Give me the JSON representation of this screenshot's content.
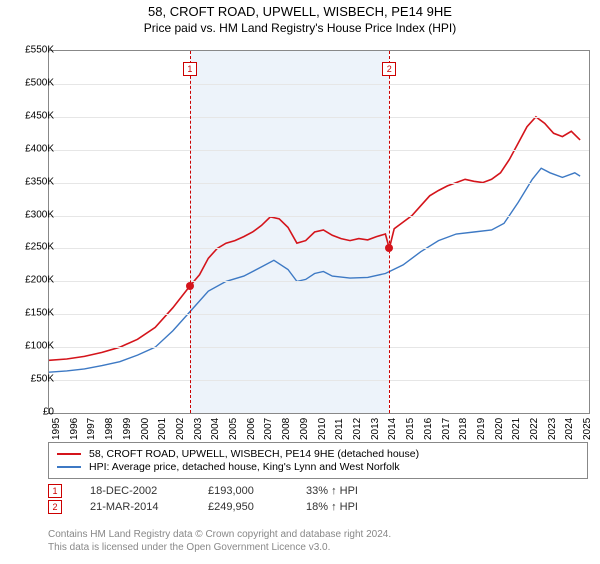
{
  "title": "58, CROFT ROAD, UPWELL, WISBECH, PE14 9HE",
  "subtitle": "Price paid vs. HM Land Registry's House Price Index (HPI)",
  "chart": {
    "type": "line",
    "background_color": "#ffffff",
    "grid_color": "#e6e6e6",
    "shaded_region_color": "#edf3fa",
    "x_start_year": 1995,
    "x_end_year": 2025.5,
    "x_ticks": [
      1995,
      1996,
      1997,
      1998,
      1999,
      2000,
      2001,
      2002,
      2003,
      2004,
      2005,
      2006,
      2007,
      2008,
      2009,
      2010,
      2011,
      2012,
      2013,
      2014,
      2015,
      2016,
      2017,
      2018,
      2019,
      2020,
      2021,
      2022,
      2023,
      2024,
      2025
    ],
    "y_min": 0,
    "y_max": 550000,
    "y_ticks": [
      0,
      50000,
      100000,
      150000,
      200000,
      250000,
      300000,
      350000,
      400000,
      450000,
      500000,
      550000
    ],
    "y_tick_labels": [
      "£0",
      "£50K",
      "£100K",
      "£150K",
      "£200K",
      "£250K",
      "£300K",
      "£350K",
      "£400K",
      "£450K",
      "£500K",
      "£550K"
    ],
    "shaded_start": 2002.96,
    "shaded_end": 2014.22,
    "series": [
      {
        "name": "property",
        "color": "#d4141b",
        "width": 1.6,
        "points": [
          [
            1995.0,
            80000
          ],
          [
            1996.0,
            82000
          ],
          [
            1997.0,
            86000
          ],
          [
            1998.0,
            92000
          ],
          [
            1999.0,
            100000
          ],
          [
            2000.0,
            112000
          ],
          [
            2001.0,
            130000
          ],
          [
            2002.0,
            160000
          ],
          [
            2002.96,
            193000
          ],
          [
            2003.5,
            210000
          ],
          [
            2004.0,
            235000
          ],
          [
            2004.5,
            250000
          ],
          [
            2005.0,
            258000
          ],
          [
            2005.5,
            262000
          ],
          [
            2006.0,
            268000
          ],
          [
            2006.5,
            275000
          ],
          [
            2007.0,
            285000
          ],
          [
            2007.5,
            298000
          ],
          [
            2008.0,
            295000
          ],
          [
            2008.5,
            282000
          ],
          [
            2009.0,
            258000
          ],
          [
            2009.5,
            262000
          ],
          [
            2010.0,
            275000
          ],
          [
            2010.5,
            278000
          ],
          [
            2011.0,
            270000
          ],
          [
            2011.5,
            265000
          ],
          [
            2012.0,
            262000
          ],
          [
            2012.5,
            265000
          ],
          [
            2013.0,
            263000
          ],
          [
            2013.5,
            268000
          ],
          [
            2014.0,
            272000
          ],
          [
            2014.22,
            249950
          ],
          [
            2014.5,
            280000
          ],
          [
            2015.0,
            290000
          ],
          [
            2015.5,
            300000
          ],
          [
            2016.0,
            315000
          ],
          [
            2016.5,
            330000
          ],
          [
            2017.0,
            338000
          ],
          [
            2017.5,
            345000
          ],
          [
            2018.0,
            350000
          ],
          [
            2018.5,
            355000
          ],
          [
            2019.0,
            352000
          ],
          [
            2019.5,
            350000
          ],
          [
            2020.0,
            355000
          ],
          [
            2020.5,
            365000
          ],
          [
            2021.0,
            385000
          ],
          [
            2021.5,
            410000
          ],
          [
            2022.0,
            435000
          ],
          [
            2022.5,
            450000
          ],
          [
            2023.0,
            440000
          ],
          [
            2023.5,
            425000
          ],
          [
            2024.0,
            420000
          ],
          [
            2024.5,
            428000
          ],
          [
            2025.0,
            415000
          ]
        ]
      },
      {
        "name": "hpi",
        "color": "#3d79c4",
        "width": 1.4,
        "points": [
          [
            1995.0,
            62000
          ],
          [
            1996.0,
            64000
          ],
          [
            1997.0,
            67000
          ],
          [
            1998.0,
            72000
          ],
          [
            1999.0,
            78000
          ],
          [
            2000.0,
            88000
          ],
          [
            2001.0,
            100000
          ],
          [
            2002.0,
            125000
          ],
          [
            2003.0,
            155000
          ],
          [
            2004.0,
            185000
          ],
          [
            2005.0,
            200000
          ],
          [
            2006.0,
            208000
          ],
          [
            2007.0,
            222000
          ],
          [
            2007.7,
            232000
          ],
          [
            2008.5,
            218000
          ],
          [
            2009.0,
            200000
          ],
          [
            2009.5,
            203000
          ],
          [
            2010.0,
            212000
          ],
          [
            2010.5,
            215000
          ],
          [
            2011.0,
            208000
          ],
          [
            2012.0,
            205000
          ],
          [
            2013.0,
            206000
          ],
          [
            2014.0,
            212000
          ],
          [
            2015.0,
            225000
          ],
          [
            2016.0,
            245000
          ],
          [
            2017.0,
            262000
          ],
          [
            2018.0,
            272000
          ],
          [
            2019.0,
            275000
          ],
          [
            2020.0,
            278000
          ],
          [
            2020.7,
            288000
          ],
          [
            2021.5,
            320000
          ],
          [
            2022.3,
            355000
          ],
          [
            2022.8,
            372000
          ],
          [
            2023.3,
            365000
          ],
          [
            2024.0,
            358000
          ],
          [
            2024.7,
            365000
          ],
          [
            2025.0,
            360000
          ]
        ]
      }
    ],
    "markers": [
      {
        "num": "1",
        "x": 2002.96,
        "y": 193000,
        "dot_color": "#d4141b"
      },
      {
        "num": "2",
        "x": 2014.22,
        "y": 249950,
        "dot_color": "#d4141b"
      }
    ]
  },
  "legend": {
    "items": [
      {
        "color": "#d4141b",
        "label": "58, CROFT ROAD, UPWELL, WISBECH, PE14 9HE (detached house)"
      },
      {
        "color": "#3d79c4",
        "label": "HPI: Average price, detached house, King's Lynn and West Norfolk"
      }
    ]
  },
  "transactions": [
    {
      "num": "1",
      "date": "18-DEC-2002",
      "price": "£193,000",
      "pct": "33% ↑ HPI"
    },
    {
      "num": "2",
      "date": "21-MAR-2014",
      "price": "£249,950",
      "pct": "18% ↑ HPI"
    }
  ],
  "footer": {
    "line1": "Contains HM Land Registry data © Crown copyright and database right 2024.",
    "line2": "This data is licensed under the Open Government Licence v3.0."
  }
}
